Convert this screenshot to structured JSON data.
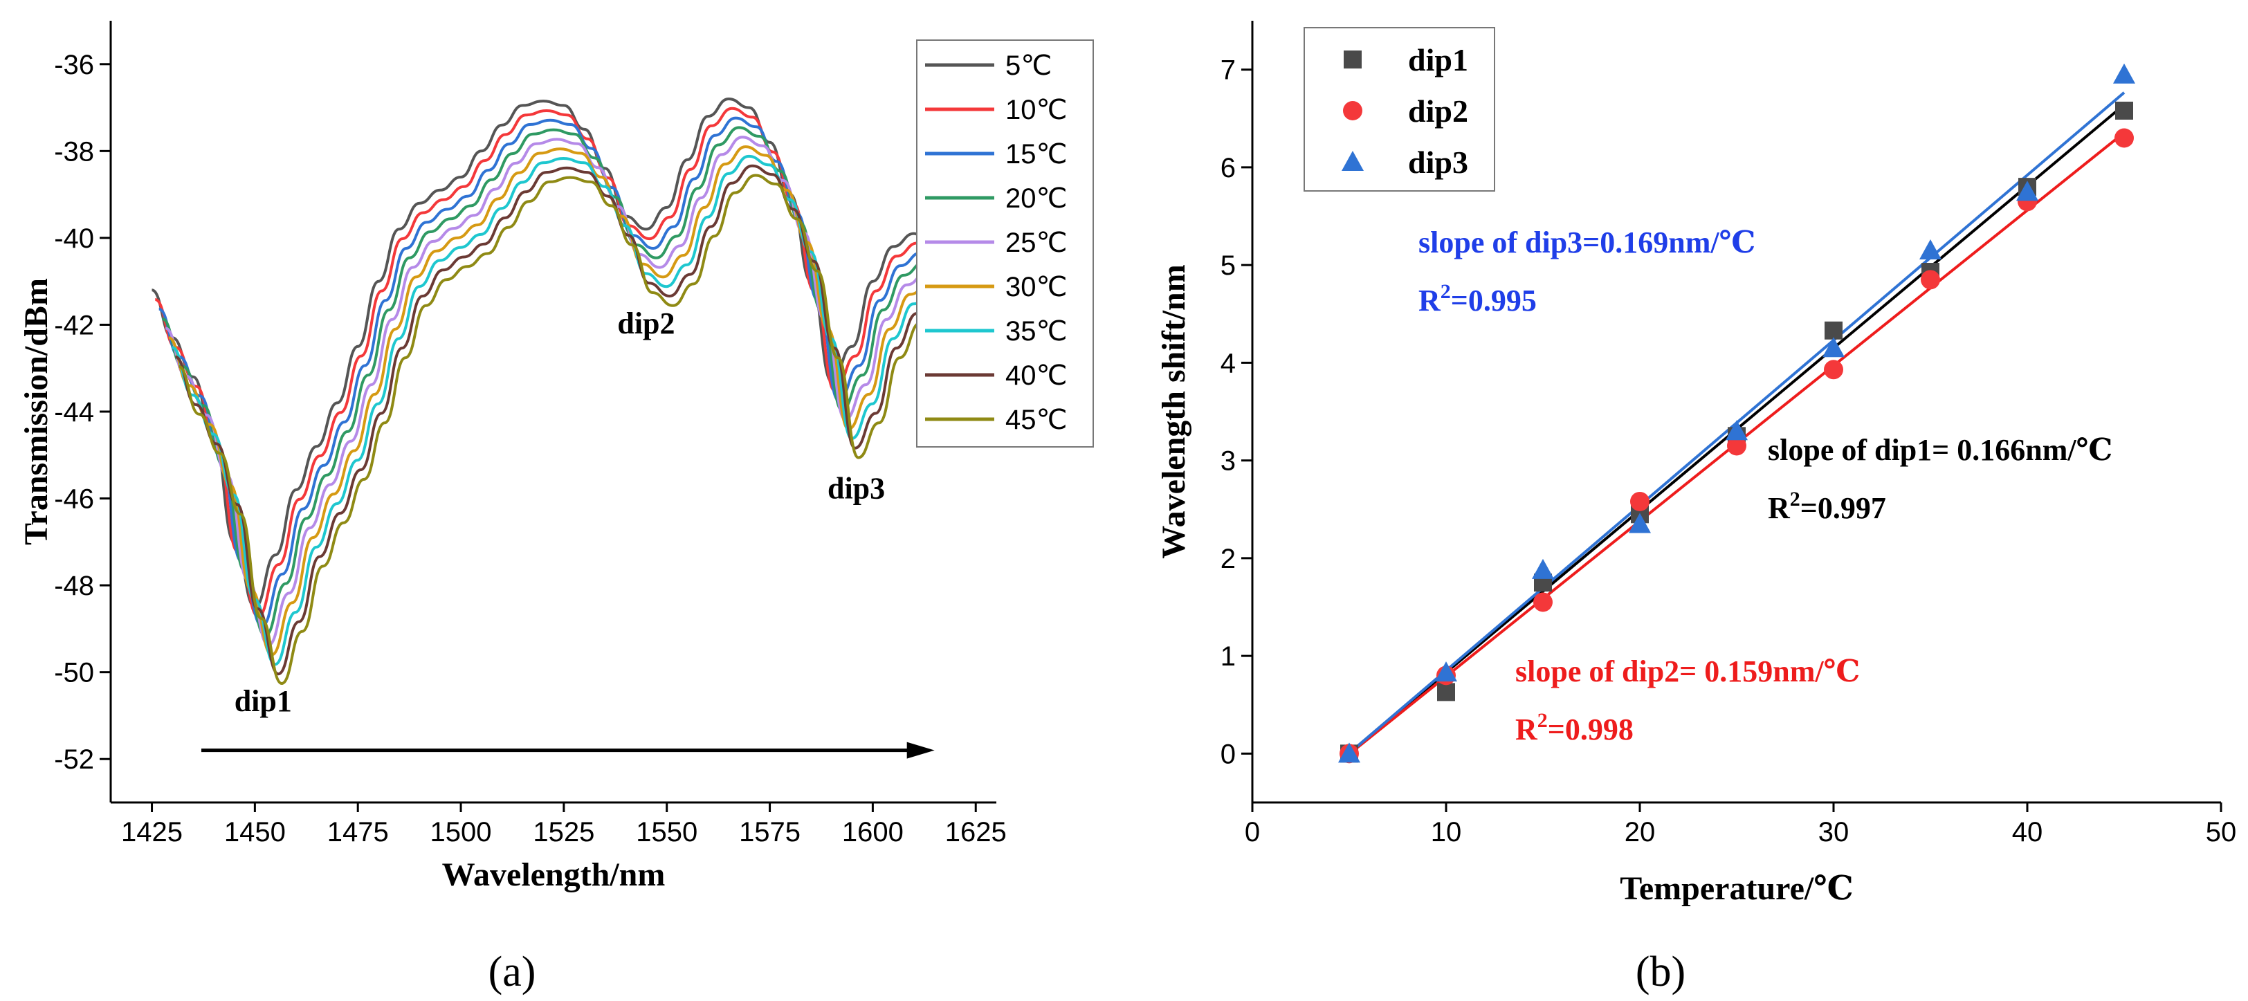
{
  "chart_data": [
    {
      "panel": "(a)",
      "type": "line",
      "xlabel": "Wavelength/nm",
      "ylabel": "Transmission/dBm",
      "xlim": [
        1415,
        1630
      ],
      "ylim": [
        -53,
        -35
      ],
      "xticks": [
        1425,
        1450,
        1475,
        1500,
        1525,
        1550,
        1575,
        1600,
        1625
      ],
      "yticks": [
        -52,
        -50,
        -48,
        -46,
        -44,
        -42,
        -40,
        -38,
        -36
      ],
      "x": [
        1425,
        1430,
        1435,
        1440,
        1445,
        1450,
        1455,
        1460,
        1465,
        1470,
        1475,
        1480,
        1485,
        1490,
        1495,
        1500,
        1505,
        1510,
        1515,
        1520,
        1525,
        1530,
        1535,
        1540,
        1545,
        1550,
        1555,
        1560,
        1565,
        1570,
        1575,
        1580,
        1585,
        1590,
        1595,
        1600,
        1605,
        1610,
        1615
      ],
      "base_curve": [
        -41.2,
        -42.3,
        -43.2,
        -44.6,
        -47.0,
        -48.5,
        -47.3,
        -45.8,
        -44.8,
        -43.8,
        -42.5,
        -41.0,
        -39.8,
        -39.2,
        -38.9,
        -38.6,
        -38.0,
        -37.4,
        -36.95,
        -36.85,
        -36.95,
        -37.5,
        -38.4,
        -39.5,
        -39.8,
        -39.3,
        -38.2,
        -37.2,
        -36.8,
        -37.0,
        -37.8,
        -39.0,
        -41.0,
        -43.3,
        -42.5,
        -41.0,
        -40.2,
        -39.9,
        -40.4
      ],
      "series": [
        {
          "name": "5℃",
          "color": "#555555",
          "x_shift_nm": 0,
          "y_offset_db": 0
        },
        {
          "name": "10℃",
          "color": "#f4383a",
          "x_shift_nm": 0.8,
          "y_offset_db": -0.22
        },
        {
          "name": "15℃",
          "color": "#2f73d4",
          "x_shift_nm": 1.7,
          "y_offset_db": -0.44
        },
        {
          "name": "20℃",
          "color": "#2f9a63",
          "x_shift_nm": 2.5,
          "y_offset_db": -0.66
        },
        {
          "name": "25℃",
          "color": "#b58ae8",
          "x_shift_nm": 3.3,
          "y_offset_db": -0.88
        },
        {
          "name": "30℃",
          "color": "#d69a13",
          "x_shift_nm": 4.1,
          "y_offset_db": -1.1
        },
        {
          "name": "35℃",
          "color": "#1ec7cf",
          "x_shift_nm": 4.9,
          "y_offset_db": -1.32
        },
        {
          "name": "40℃",
          "color": "#6b3a34",
          "x_shift_nm": 5.7,
          "y_offset_db": -1.54
        },
        {
          "name": "45℃",
          "color": "#8f8a14",
          "x_shift_nm": 6.5,
          "y_offset_db": -1.76
        }
      ],
      "annotations": [
        {
          "text": "dip1",
          "x": 1452,
          "y": -50.9
        },
        {
          "text": "dip2",
          "x": 1545,
          "y": -42.2
        },
        {
          "text": "dip3",
          "x": 1596,
          "y": -46.0
        }
      ],
      "arrow": {
        "x_start": 1437,
        "x_end": 1615,
        "y": -51.8
      }
    },
    {
      "panel": "(b)",
      "type": "scatter",
      "xlabel": "Temperature/℃",
      "ylabel": "Wavelength shift/nm",
      "xlim": [
        0,
        50
      ],
      "ylim": [
        -0.5,
        7.5
      ],
      "xticks": [
        0,
        10,
        20,
        30,
        40,
        50
      ],
      "yticks": [
        0,
        1,
        2,
        3,
        4,
        5,
        6,
        7
      ],
      "x": [
        5,
        10,
        15,
        20,
        25,
        30,
        35,
        40,
        45
      ],
      "series": [
        {
          "name": "dip1",
          "color": "#4a4a4a",
          "marker": "square",
          "values": [
            0,
            0.63,
            1.75,
            2.45,
            3.25,
            4.33,
            4.93,
            5.8,
            6.58
          ],
          "fit_color": "#000000",
          "fit_slope": 0.166,
          "fit_intercept": -0.83
        },
        {
          "name": "dip2",
          "color": "#f4383a",
          "marker": "circle",
          "values": [
            0,
            0.8,
            1.55,
            2.58,
            3.15,
            3.93,
            4.85,
            5.65,
            6.3
          ],
          "fit_color": "#ee1c1c",
          "fit_slope": 0.159,
          "fit_intercept": -0.8
        },
        {
          "name": "dip3",
          "color": "#2f73d4",
          "marker": "triangle",
          "values": [
            0,
            0.83,
            1.88,
            2.35,
            3.3,
            4.15,
            5.15,
            5.75,
            6.95
          ],
          "fit_color": "#2f73d4",
          "fit_slope": 0.169,
          "fit_intercept": -0.84
        }
      ],
      "annotations": [
        {
          "text": "slope of dip3=0.169nm/℃",
          "r2": "0.995",
          "color": "#1f3ee8"
        },
        {
          "text": "slope of dip1= 0.166nm/℃",
          "r2": "0.997",
          "color": "#000000"
        },
        {
          "text": "slope of dip2= 0.159nm/℃",
          "r2": "0.998",
          "color": "#ee1c1c"
        }
      ],
      "r2_label": "R",
      "r2_sup": "2",
      "r2_prefix": "="
    }
  ]
}
